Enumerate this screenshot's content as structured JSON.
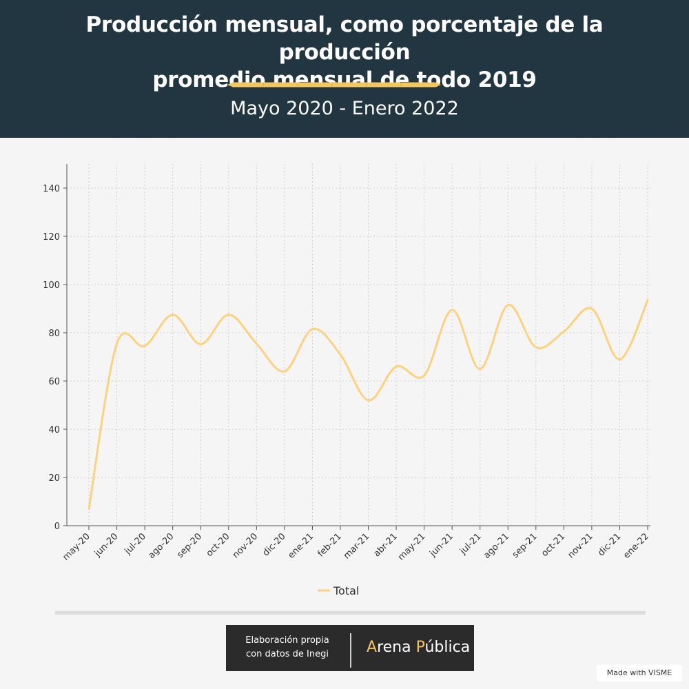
{
  "header": {
    "title_line1": "Producción mensual, como porcentaje de la producción",
    "title_line2": "promedio mensual de todo 2019",
    "subtitle": "Mayo 2020 - Enero 2022"
  },
  "colors": {
    "header_bg": "#213640",
    "accent": "#f5c65a",
    "line": "#fad37c",
    "background": "#f5f5f5"
  },
  "chart_data": {
    "type": "line",
    "categories": [
      "may-20",
      "jun-20",
      "jul-20",
      "ago-20",
      "sep-20",
      "oct-20",
      "nov-20",
      "dic-20",
      "ene-21",
      "feb-21",
      "mar-21",
      "abr-21",
      "may-21",
      "jun-21",
      "jul-21",
      "ago-21",
      "sep-21",
      "oct-21",
      "nov-21",
      "dic-21",
      "ene-22"
    ],
    "series": [
      {
        "name": "Total",
        "values": [
          7,
          75.5,
          74.5,
          87.5,
          75.3,
          87.5,
          75.5,
          64,
          81.5,
          71,
          52,
          66,
          62.3,
          89.5,
          65,
          91.5,
          74,
          80.5,
          90,
          69,
          93.5
        ]
      }
    ],
    "yticks": [
      0,
      20,
      40,
      60,
      80,
      100,
      120,
      140
    ],
    "ylim": [
      0,
      150
    ],
    "grid": true,
    "legend_position": "bottom"
  },
  "footer": {
    "credit_line1": "Elaboración propia",
    "credit_line2": "con datos de Inegi",
    "brand_A": "A",
    "brand_rena": "rena ",
    "brand_P": "P",
    "brand_ublica": "ública",
    "watermark": "Made with VISME"
  }
}
